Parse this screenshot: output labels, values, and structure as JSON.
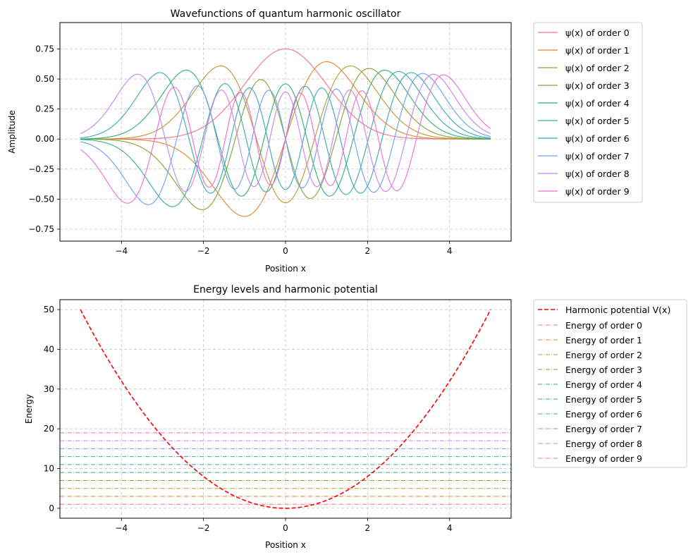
{
  "chart_data": [
    {
      "type": "line",
      "title": "Wavefunctions of quantum harmonic oscillator",
      "xlabel": "Position x",
      "ylabel": "Amplitude",
      "xlim": [
        -5.5,
        5.5
      ],
      "ylim": [
        -0.85,
        0.97
      ],
      "xticks": [
        -4,
        -2,
        0,
        2,
        4
      ],
      "yticks": [
        -0.75,
        -0.5,
        -0.25,
        0.0,
        0.25,
        0.5,
        0.75
      ],
      "ytick_labels": [
        "−0.75",
        "−0.50",
        "−0.25",
        "0.00",
        "0.25",
        "0.50",
        "0.75"
      ],
      "xtick_labels": [
        "−4",
        "−2",
        "0",
        "2",
        "4"
      ],
      "x_range": [
        -5,
        5
      ],
      "grid": true,
      "legend_position": "outside-right",
      "series": [
        {
          "name": "ψ(x) of order 0",
          "order": 0,
          "color": "#f77189"
        },
        {
          "name": "ψ(x) of order 1",
          "order": 1,
          "color": "#e18432"
        },
        {
          "name": "ψ(x) of order 2",
          "order": 2,
          "color": "#bb9832"
        },
        {
          "name": "ψ(x) of order 3",
          "order": 3,
          "color": "#7fa331"
        },
        {
          "name": "ψ(x) of order 4",
          "order": 4,
          "color": "#33ae73"
        },
        {
          "name": "ψ(x) of order 5",
          "order": 5,
          "color": "#36ac9b"
        },
        {
          "name": "ψ(x) of order 6",
          "order": 6,
          "color": "#38a8b5"
        },
        {
          "name": "ψ(x) of order 7",
          "order": 7,
          "color": "#6b9ef4"
        },
        {
          "name": "ψ(x) of order 8",
          "order": 8,
          "color": "#c882f4"
        },
        {
          "name": "ψ(x) of order 9",
          "order": 9,
          "color": "#f56ad2"
        }
      ]
    },
    {
      "type": "line",
      "title": "Energy levels and harmonic potential",
      "xlabel": "Position x",
      "ylabel": "Energy",
      "xlim": [
        -5.5,
        5.5
      ],
      "ylim": [
        -2.5,
        52.5
      ],
      "xticks": [
        -4,
        -2,
        0,
        2,
        4
      ],
      "xtick_labels": [
        "−4",
        "−2",
        "0",
        "2",
        "4"
      ],
      "yticks": [
        0,
        10,
        20,
        30,
        40,
        50
      ],
      "ytick_labels": [
        "0",
        "10",
        "20",
        "30",
        "40",
        "50"
      ],
      "grid": true,
      "legend_position": "outside-right",
      "potential": {
        "name": "Harmonic potential V(x)",
        "formula": "V(x) = 2x²",
        "x_range": [
          -5,
          5
        ],
        "color": "#ff0000"
      },
      "energy_levels": [
        {
          "name": "Energy of order 0",
          "value": 1,
          "color": "#f77189"
        },
        {
          "name": "Energy of order 1",
          "value": 3,
          "color": "#e18432"
        },
        {
          "name": "Energy of order 2",
          "value": 5,
          "color": "#bb9832"
        },
        {
          "name": "Energy of order 3",
          "value": 7,
          "color": "#7fa331"
        },
        {
          "name": "Energy of order 4",
          "value": 9,
          "color": "#33ae73"
        },
        {
          "name": "Energy of order 5",
          "value": 11,
          "color": "#36ac9b"
        },
        {
          "name": "Energy of order 6",
          "value": 13,
          "color": "#38a8b5"
        },
        {
          "name": "Energy of order 7",
          "value": 15,
          "color": "#6b9ef4"
        },
        {
          "name": "Energy of order 8",
          "value": 17,
          "color": "#c882f4"
        },
        {
          "name": "Energy of order 9",
          "value": 19,
          "color": "#f56ad2"
        }
      ]
    }
  ]
}
